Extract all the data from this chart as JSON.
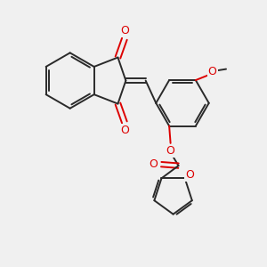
{
  "bg_color": "#f0f0f0",
  "bond_color": "#2a2a2a",
  "oxygen_color": "#dd0000",
  "bond_width": 1.4,
  "figsize": [
    3.0,
    3.0
  ],
  "dpi": 100,
  "xlim": [
    0,
    10
  ],
  "ylim": [
    0,
    10
  ]
}
